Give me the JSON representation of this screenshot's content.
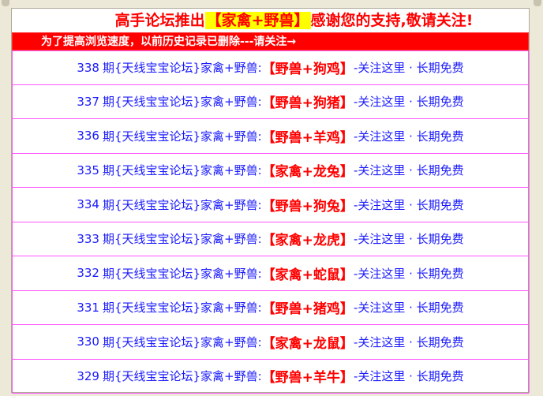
{
  "header": {
    "prefix": "高手论坛推出",
    "highlight": "【家禽+野兽】",
    "suffix": "感谢您的支持,敬请关注!"
  },
  "notice": "为了提高浏览速度，以前历史记录已删除---请关注→",
  "rows": [
    {
      "num": "338",
      "label": "期{天线宝宝论坛}家禽+野兽:",
      "result": "【野兽+狗鸡】",
      "tail": "-关注这里 · 长期免费"
    },
    {
      "num": "337",
      "label": "期{天线宝宝论坛}家禽+野兽:",
      "result": "【野兽+狗猪】",
      "tail": "-关注这里 · 长期免费"
    },
    {
      "num": "336",
      "label": "期{天线宝宝论坛}家禽+野兽:",
      "result": "【野兽+羊鸡】",
      "tail": "-关注这里 · 长期免费"
    },
    {
      "num": "335",
      "label": "期{天线宝宝论坛}家禽+野兽:",
      "result": "【家禽+龙兔】",
      "tail": "-关注这里 · 长期免费"
    },
    {
      "num": "334",
      "label": "期{天线宝宝论坛}家禽+野兽:",
      "result": "【野兽+狗兔】",
      "tail": "-关注这里 · 长期免费"
    },
    {
      "num": "333",
      "label": "期{天线宝宝论坛}家禽+野兽:",
      "result": "【家禽+龙虎】",
      "tail": "-关注这里 · 长期免费"
    },
    {
      "num": "332",
      "label": "期{天线宝宝论坛}家禽+野兽:",
      "result": "【家禽+蛇鼠】",
      "tail": "-关注这里 · 长期免费"
    },
    {
      "num": "331",
      "label": "期{天线宝宝论坛}家禽+野兽:",
      "result": "【野兽+猪鸡】",
      "tail": "-关注这里 · 长期免费"
    },
    {
      "num": "330",
      "label": "期{天线宝宝论坛}家禽+野兽:",
      "result": "【家禽+龙鼠】",
      "tail": "-关注这里 · 长期免费"
    },
    {
      "num": "329",
      "label": "期{天线宝宝论坛}家禽+野兽:",
      "result": "【野兽+羊牛】",
      "tail": "-关注这里 · 长期免费"
    }
  ]
}
